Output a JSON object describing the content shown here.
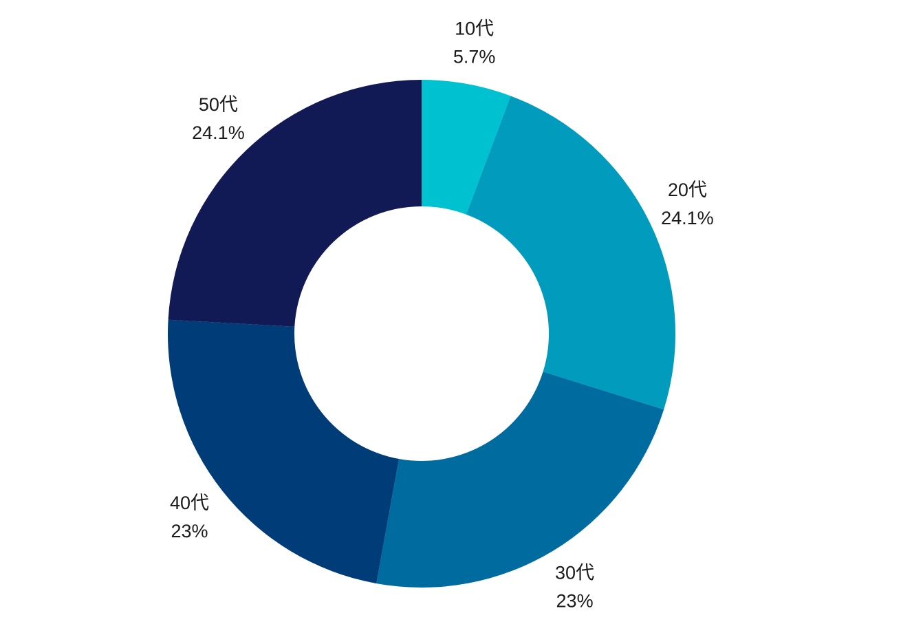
{
  "chart_data": {
    "type": "pie",
    "subtype": "donut",
    "title": "",
    "categories": [
      "10代",
      "20代",
      "30代",
      "40代",
      "50代"
    ],
    "values": [
      5.7,
      24.1,
      23,
      23,
      24.1
    ],
    "value_labels": [
      "5.7%",
      "24.1%",
      "23%",
      "23%",
      "24.1%"
    ],
    "colors": [
      "#00c1cf",
      "#009bbd",
      "#006b9f",
      "#003d78",
      "#111a55"
    ],
    "start_angle": "12 o'clock",
    "direction": "clockwise",
    "legend": "none",
    "labels_position": "outside"
  }
}
